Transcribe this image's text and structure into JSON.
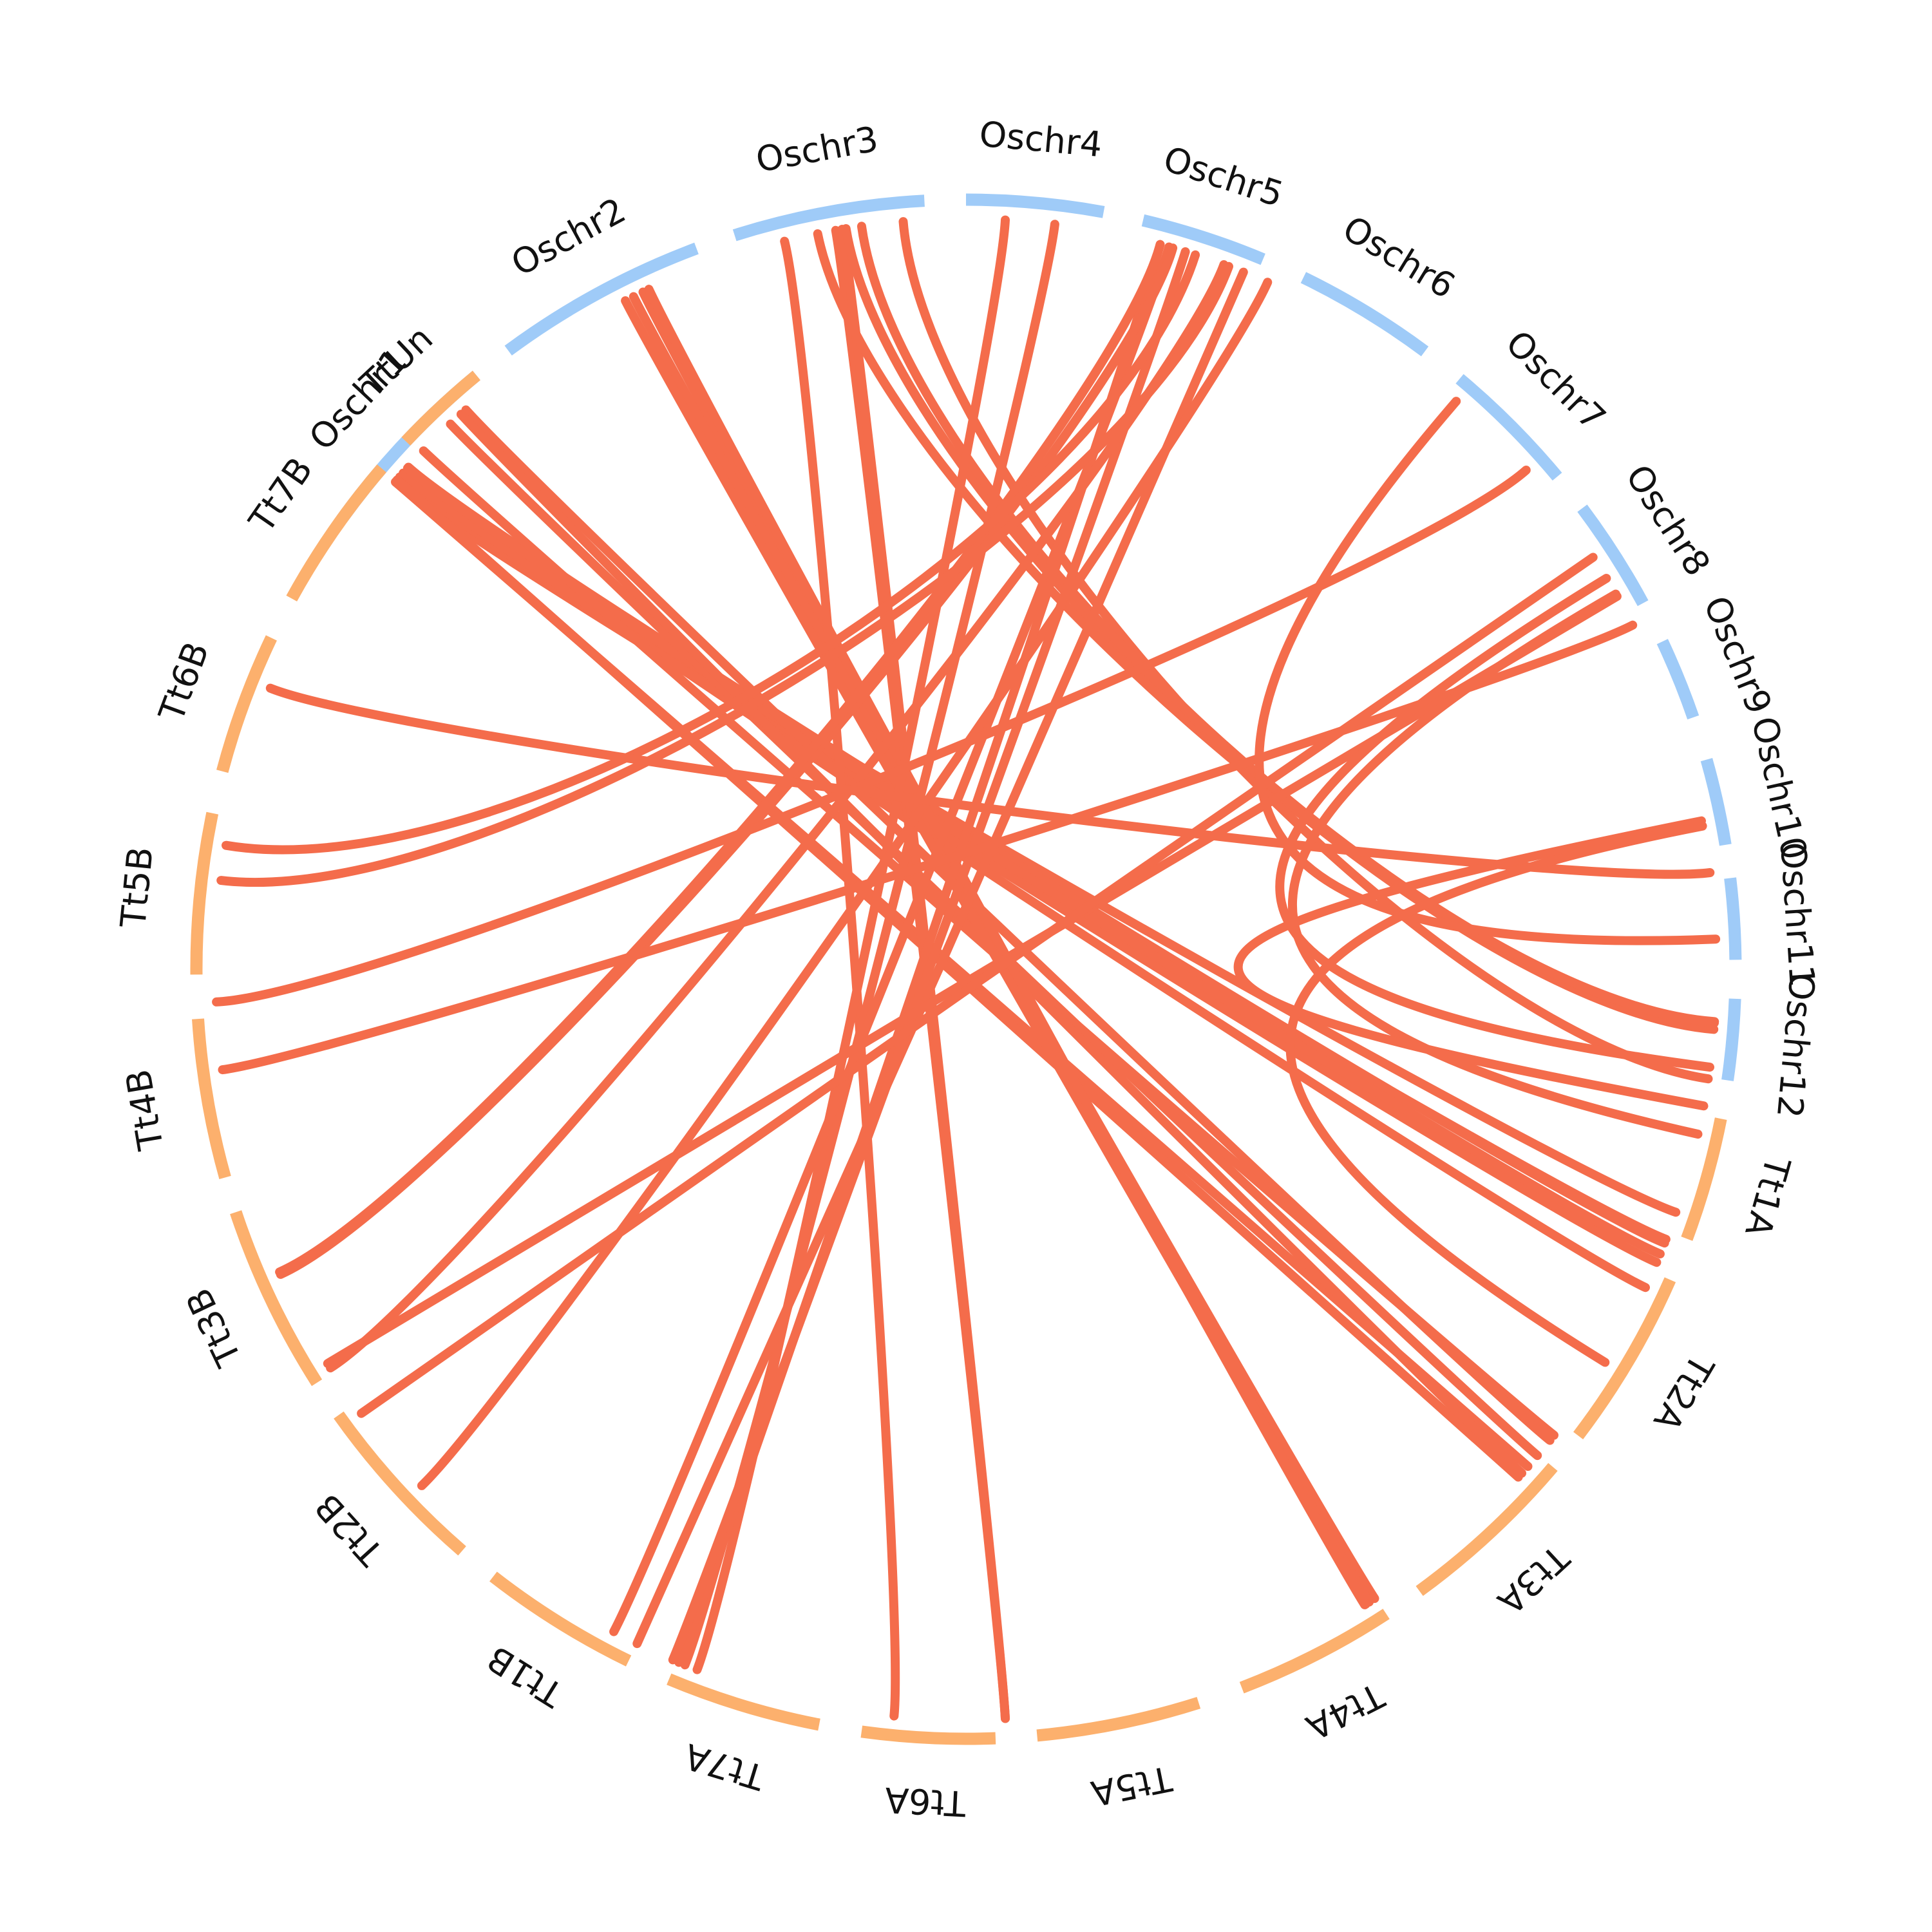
{
  "colors": {
    "rice_segment": "#9fcbf8",
    "tt_segment": "#fcb06d",
    "link": "#f46c4b",
    "label": "#111111"
  },
  "chromosomes": [
    {
      "id": "Oschr1",
      "label": "Oschr1",
      "group": "rice",
      "start": 215.8,
      "end": 230.5
    },
    {
      "id": "Oschr2",
      "label": "Oschr2",
      "group": "rice",
      "start": 233.5,
      "end": 249.5
    },
    {
      "id": "Oschr3",
      "label": "Oschr3",
      "group": "rice",
      "start": 252.5,
      "end": 266.9
    },
    {
      "id": "Oschr4",
      "label": "Oschr4",
      "group": "rice",
      "start": 270.0,
      "end": 280.3
    },
    {
      "id": "Oschr5",
      "label": "Oschr5",
      "group": "rice",
      "start": 283.3,
      "end": 292.7
    },
    {
      "id": "Oschr6",
      "label": "Oschr6",
      "group": "rice",
      "start": 296.0,
      "end": 306.6
    },
    {
      "id": "Oschr7",
      "label": "Oschr7",
      "group": "rice",
      "start": 309.9,
      "end": 320.2
    },
    {
      "id": "Oschr8",
      "label": "Oschr8",
      "group": "rice",
      "start": 323.2,
      "end": 331.6
    },
    {
      "id": "Oschr9",
      "label": "Oschr9",
      "group": "rice",
      "start": 334.8,
      "end": 340.9
    },
    {
      "id": "Oschr10",
      "label": "Oschr10",
      "group": "rice",
      "start": 344.2,
      "end": 350.7
    },
    {
      "id": "Oschr11",
      "label": "Oschr11",
      "group": "rice",
      "start": 353.2,
      "end": 359.3
    },
    {
      "id": "Oschr12",
      "label": "Oschr12",
      "group": "rice",
      "start": 362.2,
      "end": 368.3
    },
    {
      "id": "Tt1A",
      "label": "Tt1A",
      "group": "tt",
      "start": 371.2,
      "end": 380.5
    },
    {
      "id": "Tt2A",
      "label": "Tt2A",
      "group": "tt",
      "start": 383.8,
      "end": 397.3
    },
    {
      "id": "Tt3A",
      "label": "Tt3A",
      "group": "tt",
      "start": 400.3,
      "end": 413.9
    },
    {
      "id": "Tt4A",
      "label": "Tt4A",
      "group": "tt",
      "start": 416.9,
      "end": 429.0
    },
    {
      "id": "Tt5A",
      "label": "Tt5A",
      "group": "tt",
      "start": 432.4,
      "end": 444.7
    },
    {
      "id": "Tt6A",
      "label": "Tt6A",
      "group": "tt",
      "start": 447.8,
      "end": 457.8
    },
    {
      "id": "Tt7A",
      "label": "Tt7A",
      "group": "tt",
      "start": 461.0,
      "end": 472.7
    },
    {
      "id": "Tt1B",
      "label": "Tt1B",
      "group": "tt",
      "start": 476.0,
      "end": 487.9
    },
    {
      "id": "Tt2B",
      "label": "Tt2B",
      "group": "tt",
      "start": 490.9,
      "end": 504.6
    },
    {
      "id": "Tt3B",
      "label": "Tt3B",
      "group": "tt",
      "start": 507.5,
      "end": 521.6
    },
    {
      "id": "Tt4B",
      "label": "Tt4B",
      "group": "tt",
      "start": 524.3,
      "end": 536.3
    },
    {
      "id": "Tt5B",
      "label": "Tt5B",
      "group": "tt",
      "start": 539.6,
      "end": 551.7
    },
    {
      "id": "Tt6B",
      "label": "Tt6B",
      "group": "tt",
      "start": 554.9,
      "end": 565.5
    },
    {
      "id": "Tt7B",
      "label": "Tt7B",
      "group": "tt",
      "start": 568.8,
      "end": 580.6
    },
    {
      "id": "TtUn",
      "label": "TtUn",
      "group": "tt",
      "start": 583.3,
      "end": 590.5
    }
  ],
  "links": [
    [
      18.9,
      220.7
    ],
    [
      21.1,
      220.5
    ],
    [
      23.0,
      221.0
    ],
    [
      25.1,
      221.4
    ],
    [
      21.4,
      222.0
    ],
    [
      22.3,
      221.9
    ],
    [
      38.4,
      223.7
    ],
    [
      41.5,
      220.5
    ],
    [
      42.6,
      220.7
    ],
    [
      38.9,
      228.2
    ],
    [
      40.4,
      226.6
    ],
    [
      42.2,
      227.7
    ],
    [
      57.9,
      244.5
    ],
    [
      57.0,
      243.7
    ],
    [
      57.5,
      243.0
    ],
    [
      57.8,
      245.0
    ],
    [
      87.0,
      260.0
    ],
    [
      87.0,
      260.5
    ],
    [
      4.6,
      260.8
    ],
    [
      4.1,
      258.6
    ],
    [
      8.4,
      265.2
    ],
    [
      4.0,
      262.0
    ],
    [
      95.5,
      256.0
    ],
    [
      112.0,
      276.8
    ],
    [
      111.0,
      273.0
    ],
    [
      118.0,
      285.7
    ],
    [
      116.0,
      291.7
    ],
    [
      136.5,
      293.7
    ],
    [
      112.5,
      285.0
    ],
    [
      113.0,
      287.0
    ],
    [
      147.9,
      290.1
    ],
    [
      156.0,
      286.0
    ],
    [
      156.2,
      285.0
    ],
    [
      186.8,
      290.5
    ],
    [
      189.5,
      287.8
    ],
    [
      177.5,
      318.3
    ],
    [
      172.3,
      332.7
    ],
    [
      148.3,
      330.2
    ],
    [
      143.7,
      326.7
    ],
    [
      352.6,
      202.0
    ],
    [
      357.7,
      310.8
    ],
    [
      367.5,
      328.6
    ],
    [
      372.7,
      330.0
    ],
    [
      10.5,
      348.6
    ],
    [
      31.6,
      349.0
    ]
  ]
}
